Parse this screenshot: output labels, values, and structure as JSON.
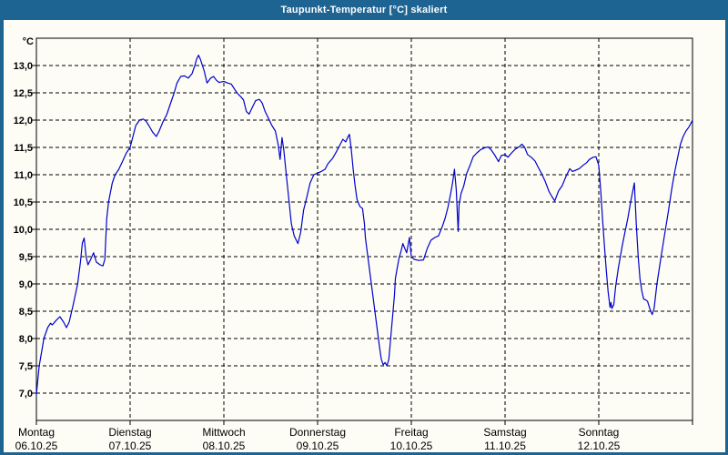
{
  "window": {
    "title": "Taupunkt-Temperatur [°C] skaliert"
  },
  "colors": {
    "titlebar": "#1E6492",
    "frame": "#1E6492",
    "background": "#FDFDF6",
    "line": "#0000CC",
    "grid": "#000000",
    "title_text": "#FFFFFF"
  },
  "chart_data": {
    "type": "line",
    "title": "Taupunkt-Temperatur [°C] skaliert",
    "ylabel": "°C",
    "unit_label": "°C",
    "ylim": [
      7.0,
      13.0
    ],
    "ytick_step": 0.5,
    "ytick_labels": [
      "13,0",
      "12,5",
      "12,0",
      "11,5",
      "11,0",
      "10,5",
      "10,0",
      "9,5",
      "9,0",
      "8,5",
      "8,0",
      "7,5",
      "7,0"
    ],
    "grid": "dashed",
    "legend": "none",
    "x_axis": {
      "span_days": 7,
      "days": [
        {
          "name": "Montag",
          "date": "06.10.25"
        },
        {
          "name": "Dienstag",
          "date": "07.10.25"
        },
        {
          "name": "Mittwoch",
          "date": "08.10.25"
        },
        {
          "name": "Donnerstag",
          "date": "09.10.25"
        },
        {
          "name": "Freitag",
          "date": "10.10.25"
        },
        {
          "name": "Samstag",
          "date": "11.10.25"
        },
        {
          "name": "Sonntag",
          "date": "12.10.25"
        }
      ]
    },
    "series": [
      {
        "name": "Taupunkt-Temperatur",
        "color": "#0000CC",
        "points": [
          [
            0.0,
            6.97
          ],
          [
            0.01,
            7.15
          ],
          [
            0.03,
            7.5
          ],
          [
            0.06,
            7.8
          ],
          [
            0.08,
            8.0
          ],
          [
            0.12,
            8.2
          ],
          [
            0.15,
            8.28
          ],
          [
            0.17,
            8.25
          ],
          [
            0.21,
            8.33
          ],
          [
            0.25,
            8.4
          ],
          [
            0.29,
            8.3
          ],
          [
            0.32,
            8.2
          ],
          [
            0.35,
            8.3
          ],
          [
            0.39,
            8.6
          ],
          [
            0.44,
            9.0
          ],
          [
            0.47,
            9.4
          ],
          [
            0.49,
            9.75
          ],
          [
            0.51,
            9.84
          ],
          [
            0.53,
            9.5
          ],
          [
            0.55,
            9.35
          ],
          [
            0.58,
            9.45
          ],
          [
            0.61,
            9.57
          ],
          [
            0.64,
            9.4
          ],
          [
            0.68,
            9.35
          ],
          [
            0.71,
            9.33
          ],
          [
            0.73,
            9.45
          ],
          [
            0.75,
            10.2
          ],
          [
            0.77,
            10.5
          ],
          [
            0.81,
            10.85
          ],
          [
            0.84,
            11.0
          ],
          [
            0.88,
            11.1
          ],
          [
            0.92,
            11.25
          ],
          [
            0.96,
            11.4
          ],
          [
            1.0,
            11.5
          ],
          [
            1.03,
            11.7
          ],
          [
            1.06,
            11.9
          ],
          [
            1.1,
            12.0
          ],
          [
            1.14,
            12.02
          ],
          [
            1.17,
            11.98
          ],
          [
            1.2,
            11.9
          ],
          [
            1.24,
            11.78
          ],
          [
            1.28,
            11.7
          ],
          [
            1.31,
            11.8
          ],
          [
            1.35,
            11.97
          ],
          [
            1.39,
            12.1
          ],
          [
            1.43,
            12.3
          ],
          [
            1.47,
            12.5
          ],
          [
            1.5,
            12.68
          ],
          [
            1.54,
            12.8
          ],
          [
            1.58,
            12.81
          ],
          [
            1.62,
            12.77
          ],
          [
            1.66,
            12.85
          ],
          [
            1.69,
            13.0
          ],
          [
            1.71,
            13.12
          ],
          [
            1.73,
            13.19
          ],
          [
            1.75,
            13.11
          ],
          [
            1.79,
            12.9
          ],
          [
            1.82,
            12.68
          ],
          [
            1.86,
            12.77
          ],
          [
            1.89,
            12.8
          ],
          [
            1.92,
            12.73
          ],
          [
            1.95,
            12.69
          ],
          [
            2.0,
            12.71
          ],
          [
            2.04,
            12.68
          ],
          [
            2.08,
            12.66
          ],
          [
            2.12,
            12.55
          ],
          [
            2.15,
            12.48
          ],
          [
            2.18,
            12.43
          ],
          [
            2.21,
            12.37
          ],
          [
            2.24,
            12.16
          ],
          [
            2.27,
            12.11
          ],
          [
            2.3,
            12.22
          ],
          [
            2.34,
            12.36
          ],
          [
            2.38,
            12.38
          ],
          [
            2.41,
            12.31
          ],
          [
            2.44,
            12.16
          ],
          [
            2.48,
            12.02
          ],
          [
            2.51,
            11.91
          ],
          [
            2.55,
            11.8
          ],
          [
            2.58,
            11.55
          ],
          [
            2.6,
            11.28
          ],
          [
            2.62,
            11.68
          ],
          [
            2.64,
            11.45
          ],
          [
            2.66,
            11.1
          ],
          [
            2.69,
            10.6
          ],
          [
            2.72,
            10.1
          ],
          [
            2.75,
            9.88
          ],
          [
            2.79,
            9.74
          ],
          [
            2.82,
            9.95
          ],
          [
            2.85,
            10.35
          ],
          [
            2.88,
            10.55
          ],
          [
            2.92,
            10.85
          ],
          [
            2.96,
            11.0
          ],
          [
            3.0,
            11.03
          ],
          [
            3.04,
            11.06
          ],
          [
            3.08,
            11.1
          ],
          [
            3.11,
            11.2
          ],
          [
            3.16,
            11.3
          ],
          [
            3.2,
            11.42
          ],
          [
            3.24,
            11.55
          ],
          [
            3.27,
            11.65
          ],
          [
            3.3,
            11.6
          ],
          [
            3.32,
            11.68
          ],
          [
            3.34,
            11.74
          ],
          [
            3.36,
            11.45
          ],
          [
            3.38,
            11.1
          ],
          [
            3.4,
            10.8
          ],
          [
            3.42,
            10.55
          ],
          [
            3.45,
            10.42
          ],
          [
            3.48,
            10.38
          ],
          [
            3.5,
            10.1
          ],
          [
            3.51,
            9.85
          ],
          [
            3.54,
            9.45
          ],
          [
            3.57,
            9.05
          ],
          [
            3.6,
            8.65
          ],
          [
            3.63,
            8.25
          ],
          [
            3.66,
            7.85
          ],
          [
            3.68,
            7.62
          ],
          [
            3.7,
            7.52
          ],
          [
            3.72,
            7.56
          ],
          [
            3.74,
            7.5
          ],
          [
            3.76,
            7.62
          ],
          [
            3.78,
            8.0
          ],
          [
            3.8,
            8.4
          ],
          [
            3.82,
            8.8
          ],
          [
            3.83,
            9.1
          ],
          [
            3.85,
            9.3
          ],
          [
            3.87,
            9.48
          ],
          [
            3.89,
            9.6
          ],
          [
            3.91,
            9.74
          ],
          [
            3.93,
            9.65
          ],
          [
            3.95,
            9.57
          ],
          [
            3.98,
            9.85
          ],
          [
            4.0,
            9.5
          ],
          [
            4.03,
            9.45
          ],
          [
            4.08,
            9.43
          ],
          [
            4.13,
            9.44
          ],
          [
            4.17,
            9.65
          ],
          [
            4.21,
            9.8
          ],
          [
            4.25,
            9.85
          ],
          [
            4.29,
            9.88
          ],
          [
            4.33,
            10.05
          ],
          [
            4.36,
            10.2
          ],
          [
            4.39,
            10.4
          ],
          [
            4.42,
            10.66
          ],
          [
            4.44,
            10.85
          ],
          [
            4.46,
            11.1
          ],
          [
            4.48,
            10.72
          ],
          [
            4.5,
            9.96
          ],
          [
            4.51,
            10.45
          ],
          [
            4.53,
            10.65
          ],
          [
            4.56,
            10.8
          ],
          [
            4.59,
            11.02
          ],
          [
            4.63,
            11.19
          ],
          [
            4.66,
            11.33
          ],
          [
            4.7,
            11.4
          ],
          [
            4.74,
            11.46
          ],
          [
            4.78,
            11.49
          ],
          [
            4.82,
            11.51
          ],
          [
            4.85,
            11.46
          ],
          [
            4.89,
            11.36
          ],
          [
            4.93,
            11.24
          ],
          [
            4.96,
            11.35
          ],
          [
            5.0,
            11.37
          ],
          [
            5.03,
            11.32
          ],
          [
            5.07,
            11.4
          ],
          [
            5.11,
            11.47
          ],
          [
            5.15,
            11.51
          ],
          [
            5.18,
            11.56
          ],
          [
            5.21,
            11.5
          ],
          [
            5.24,
            11.37
          ],
          [
            5.28,
            11.32
          ],
          [
            5.32,
            11.25
          ],
          [
            5.35,
            11.15
          ],
          [
            5.39,
            11.02
          ],
          [
            5.43,
            10.87
          ],
          [
            5.47,
            10.69
          ],
          [
            5.5,
            10.6
          ],
          [
            5.53,
            10.52
          ],
          [
            5.57,
            10.7
          ],
          [
            5.61,
            10.8
          ],
          [
            5.65,
            10.97
          ],
          [
            5.69,
            11.11
          ],
          [
            5.72,
            11.06
          ],
          [
            5.75,
            11.08
          ],
          [
            5.79,
            11.11
          ],
          [
            5.83,
            11.17
          ],
          [
            5.87,
            11.22
          ],
          [
            5.9,
            11.28
          ],
          [
            5.94,
            11.32
          ],
          [
            5.97,
            11.33
          ],
          [
            6.0,
            11.17
          ],
          [
            6.02,
            10.72
          ],
          [
            6.04,
            10.2
          ],
          [
            6.06,
            9.7
          ],
          [
            6.08,
            9.26
          ],
          [
            6.1,
            8.85
          ],
          [
            6.12,
            8.57
          ],
          [
            6.13,
            8.66
          ],
          [
            6.14,
            8.55
          ],
          [
            6.16,
            8.62
          ],
          [
            6.18,
            8.95
          ],
          [
            6.21,
            9.3
          ],
          [
            6.25,
            9.7
          ],
          [
            6.28,
            9.95
          ],
          [
            6.31,
            10.2
          ],
          [
            6.34,
            10.5
          ],
          [
            6.36,
            10.68
          ],
          [
            6.38,
            10.85
          ],
          [
            6.4,
            10.1
          ],
          [
            6.42,
            9.5
          ],
          [
            6.44,
            9.09
          ],
          [
            6.46,
            8.86
          ],
          [
            6.48,
            8.72
          ],
          [
            6.5,
            8.71
          ],
          [
            6.52,
            8.68
          ],
          [
            6.55,
            8.52
          ],
          [
            6.57,
            8.44
          ],
          [
            6.59,
            8.55
          ],
          [
            6.62,
            9.0
          ],
          [
            6.66,
            9.45
          ],
          [
            6.7,
            9.88
          ],
          [
            6.74,
            10.3
          ],
          [
            6.78,
            10.75
          ],
          [
            6.81,
            11.05
          ],
          [
            6.84,
            11.3
          ],
          [
            6.87,
            11.55
          ],
          [
            6.9,
            11.7
          ],
          [
            6.93,
            11.8
          ],
          [
            6.96,
            11.87
          ],
          [
            6.98,
            11.93
          ],
          [
            7.0,
            12.0
          ]
        ]
      }
    ]
  }
}
